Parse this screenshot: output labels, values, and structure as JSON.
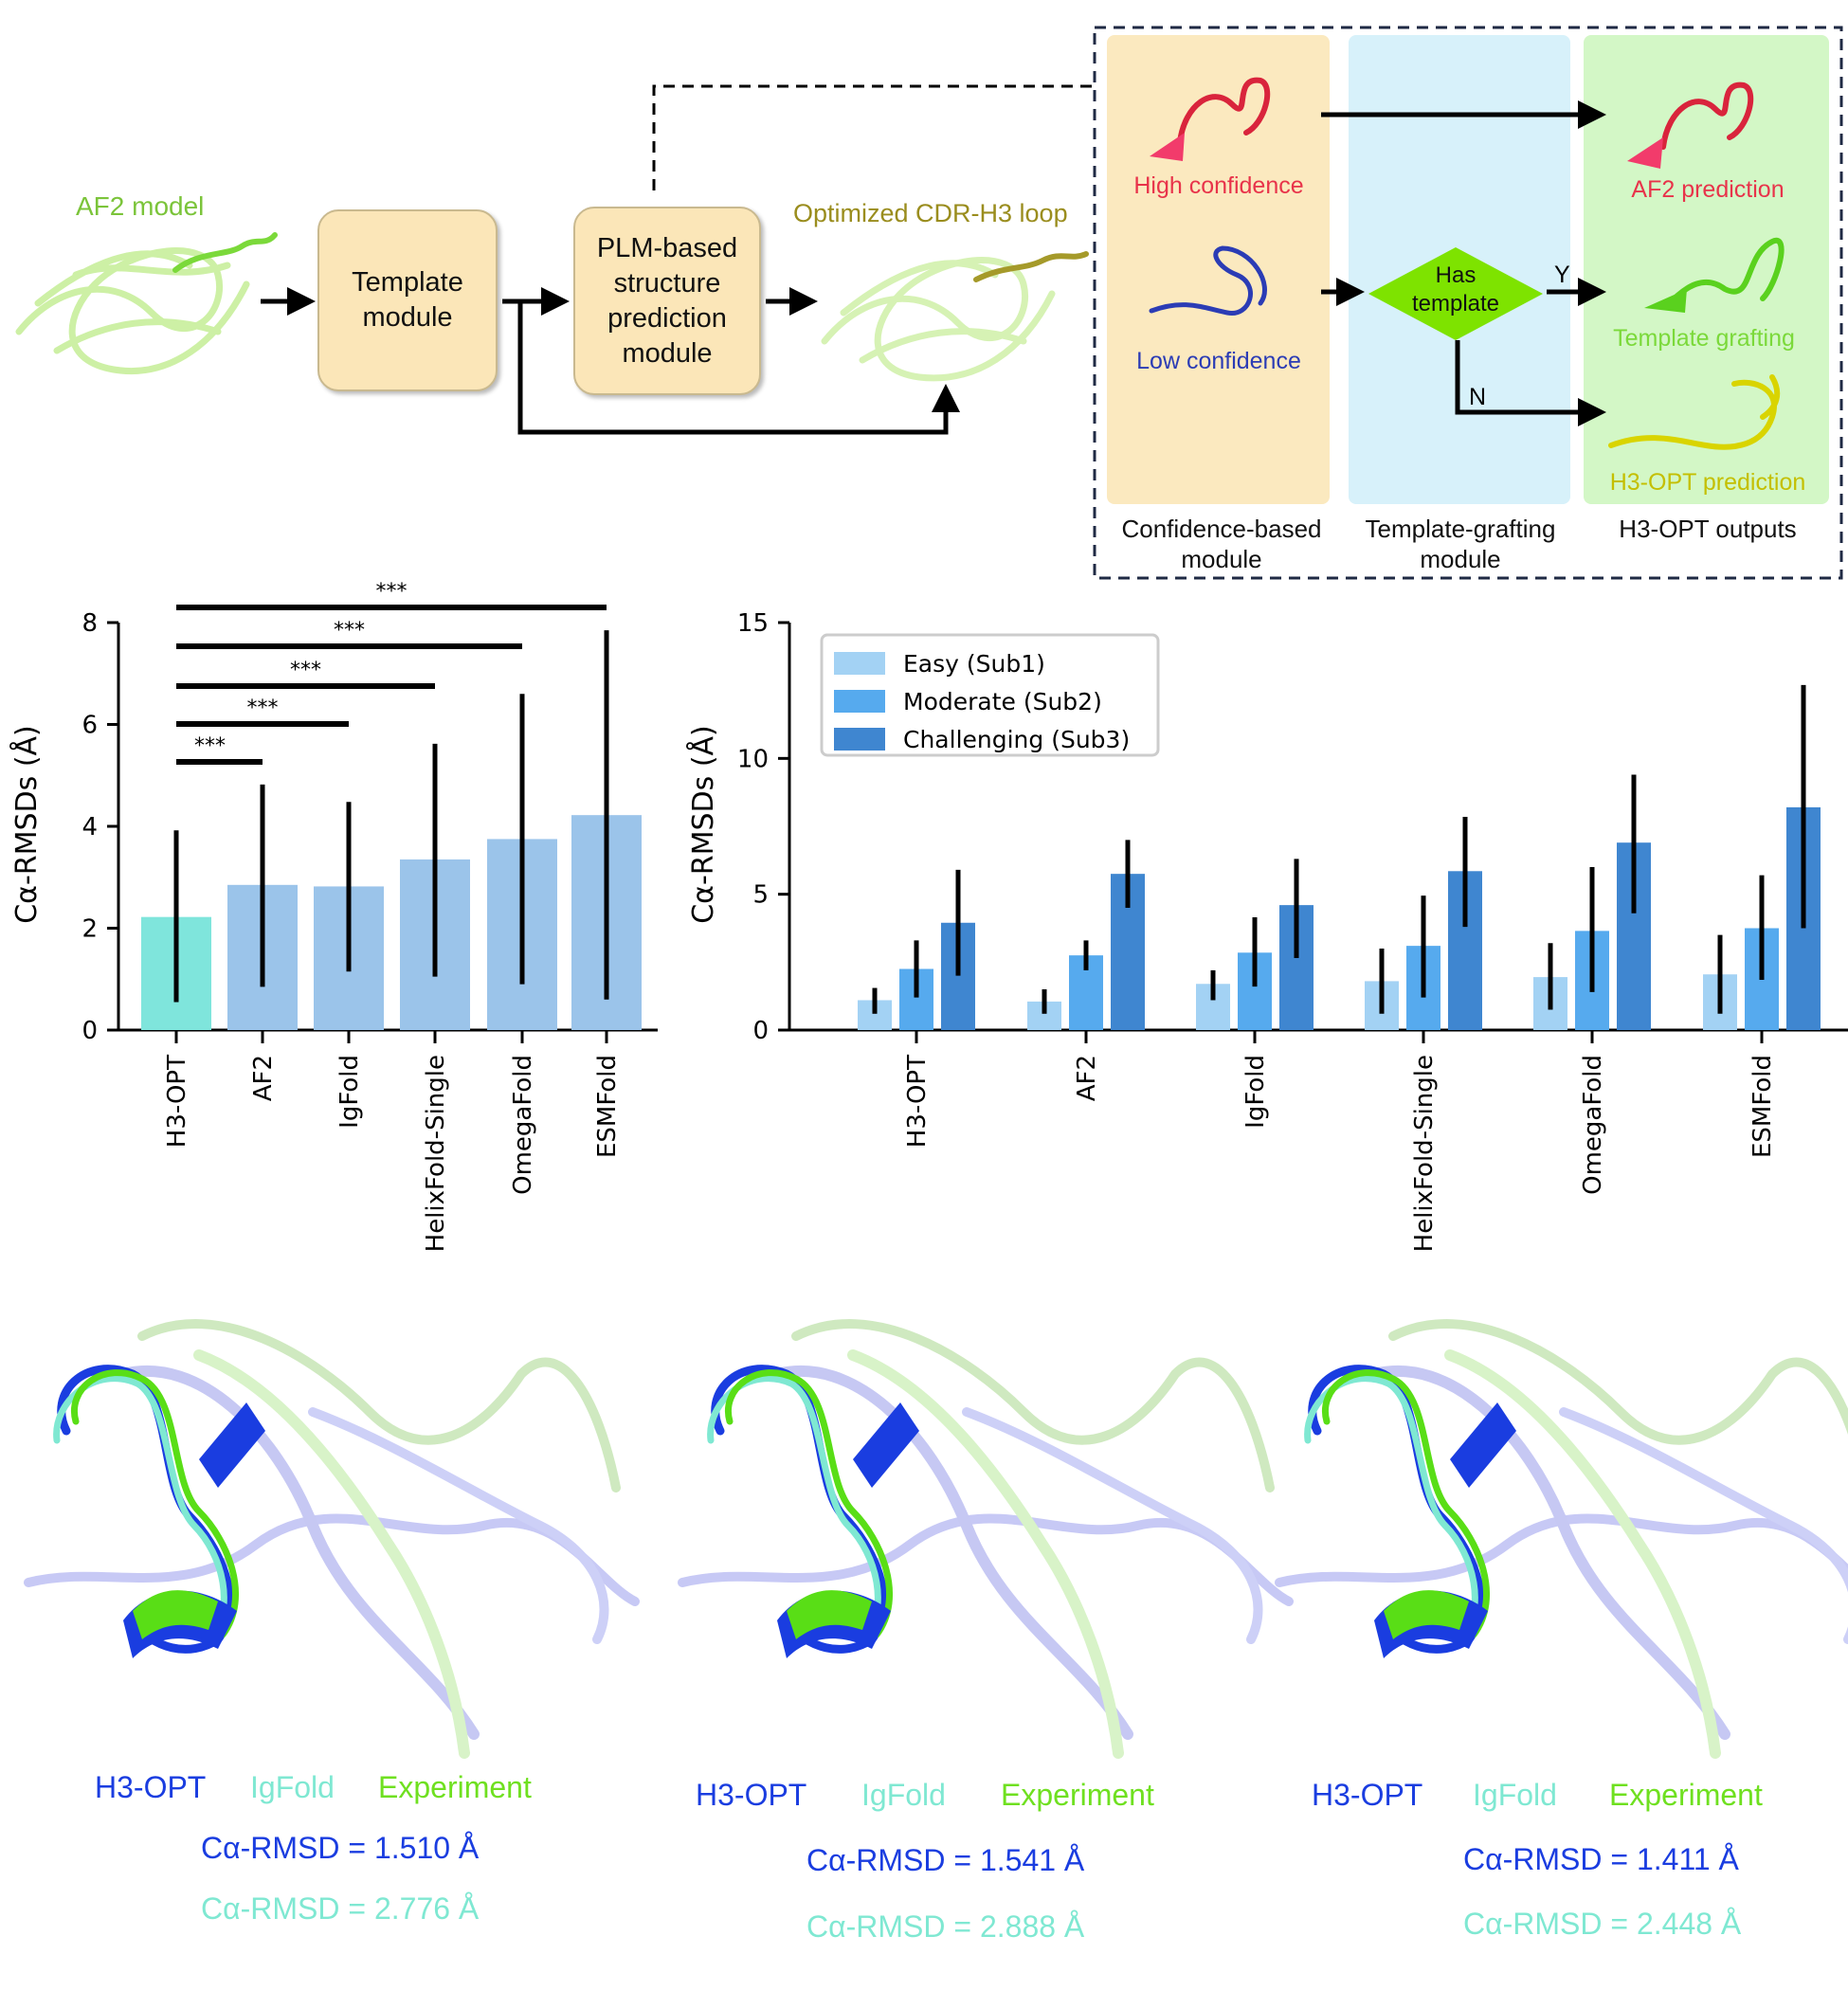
{
  "diagram": {
    "af2_model_label": "AF2 model",
    "template_module": "Template module",
    "plm_module": "PLM-based structure prediction module",
    "optimized_label": "Optimized CDR-H3 loop",
    "high_confidence": "High confidence",
    "low_confidence": "Low confidence",
    "has_template": "Has template",
    "yes": "Y",
    "no": "N",
    "af2_prediction": "AF2 prediction",
    "template_grafting": "Template grafting",
    "h3opt_prediction": "H3-OPT prediction",
    "confidence_module": "Confidence-based module",
    "grafting_module": "Template-grafting module",
    "outputs": "H3-OPT outputs",
    "colors": {
      "high": "#e8334a",
      "low": "#2b3cb5",
      "grafting": "#7bd93a",
      "h3opt": "#c4bf00",
      "diamond": "#7ee300",
      "box": "#fbe6b8"
    }
  },
  "chart_data": [
    {
      "type": "bar",
      "ylabel": "Cα-RMSDs (Å)",
      "ylim": [
        0,
        8
      ],
      "yticks": [
        0,
        2,
        4,
        6,
        8
      ],
      "categories": [
        "H3-OPT",
        "AF2",
        "IgFold",
        "HelixFold-Single",
        "OmegaFold",
        "ESMFold"
      ],
      "values": [
        2.22,
        2.85,
        2.82,
        3.35,
        3.75,
        4.22
      ],
      "error_low": [
        0.55,
        0.85,
        1.15,
        1.05,
        0.9,
        0.6
      ],
      "error_high": [
        3.92,
        4.82,
        4.48,
        5.62,
        6.6,
        7.85
      ],
      "colors": [
        "#7fe5dc",
        "#9bc4ea",
        "#9bc4ea",
        "#9bc4ea",
        "#9bc4ea",
        "#9bc4ea"
      ],
      "significance": [
        {
          "from": "H3-OPT",
          "to": "AF2",
          "label": "***"
        },
        {
          "from": "H3-OPT",
          "to": "IgFold",
          "label": "***"
        },
        {
          "from": "H3-OPT",
          "to": "HelixFold-Single",
          "label": "***"
        },
        {
          "from": "H3-OPT",
          "to": "OmegaFold",
          "label": "***"
        },
        {
          "from": "H3-OPT",
          "to": "ESMFold",
          "label": "***"
        }
      ]
    },
    {
      "type": "bar",
      "ylabel": "Cα-RMSDs (Å)",
      "ylim": [
        0,
        15
      ],
      "yticks": [
        0,
        5,
        10,
        15
      ],
      "legend": "top-left",
      "categories": [
        "H3-OPT",
        "AF2",
        "IgFold",
        "HelixFold-Single",
        "OmegaFold",
        "ESMFold"
      ],
      "series": [
        {
          "name": "Easy (Sub1)",
          "color": "#a3d2f4",
          "values": [
            1.1,
            1.05,
            1.7,
            1.8,
            1.95,
            2.05
          ],
          "error_low": [
            0.6,
            0.6,
            1.1,
            0.6,
            0.75,
            0.6
          ],
          "error_high": [
            1.55,
            1.5,
            2.2,
            3.0,
            3.2,
            3.5
          ]
        },
        {
          "name": "Moderate (Sub2)",
          "color": "#56aaee",
          "values": [
            2.25,
            2.75,
            2.85,
            3.1,
            3.65,
            3.75
          ],
          "error_low": [
            1.2,
            2.2,
            1.6,
            1.2,
            1.4,
            1.85
          ],
          "error_high": [
            3.3,
            3.3,
            4.15,
            4.95,
            6.0,
            5.7
          ]
        },
        {
          "name": "Challenging (Sub3)",
          "color": "#3f86d0",
          "values": [
            3.95,
            5.75,
            4.6,
            5.85,
            6.9,
            8.2
          ],
          "error_low": [
            2.0,
            4.5,
            2.65,
            3.8,
            4.3,
            3.75
          ],
          "error_high": [
            5.9,
            7.0,
            6.3,
            7.85,
            9.4,
            12.7
          ]
        }
      ]
    }
  ],
  "structures": [
    {
      "h3opt": "H3-OPT",
      "igfold": "IgFold",
      "experiment": "Experiment",
      "rmsd_h3opt": "Cα-RMSD = 1.510 Å",
      "rmsd_igfold": "Cα-RMSD = 2.776 Å"
    },
    {
      "h3opt": "H3-OPT",
      "igfold": "IgFold",
      "experiment": "Experiment",
      "rmsd_h3opt": "Cα-RMSD = 1.541 Å",
      "rmsd_igfold": "Cα-RMSD = 2.888 Å"
    },
    {
      "h3opt": "H3-OPT",
      "igfold": "IgFold",
      "experiment": "Experiment",
      "rmsd_h3opt": "Cα-RMSD = 1.411 Å",
      "rmsd_igfold": "Cα-RMSD = 2.448 Å"
    }
  ],
  "legend_colors": {
    "h3opt": "#1a3de0",
    "igfold": "#7fe8d2",
    "experiment": "#6fe020"
  }
}
